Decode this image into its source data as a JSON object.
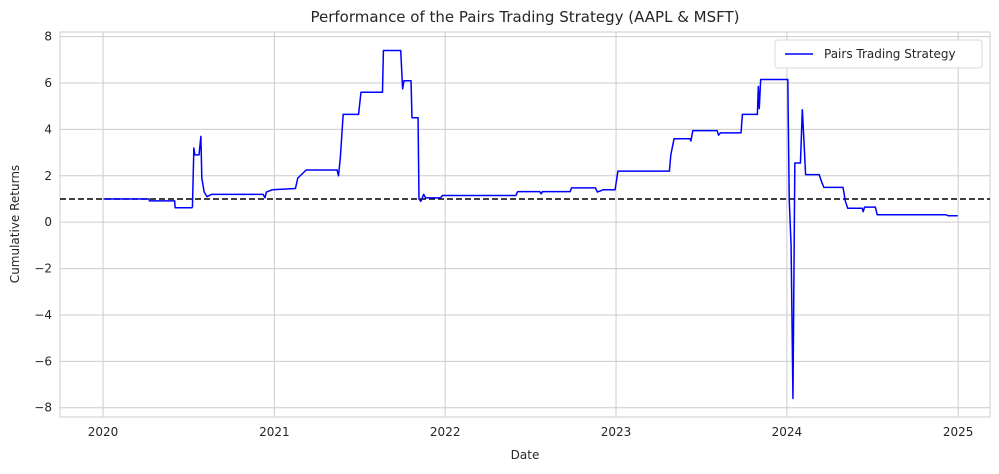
{
  "chart_data": {
    "type": "line",
    "title": "Performance of the Pairs Trading Strategy (AAPL & MSFT)",
    "xlabel": "Date",
    "ylabel": "Cumulative Returns",
    "xlim": [
      "2019-10-01",
      "2025-03-10"
    ],
    "ylim": [
      -8.4,
      8.2
    ],
    "x_ticks": [
      "2020",
      "2021",
      "2022",
      "2023",
      "2024",
      "2025"
    ],
    "y_ticks": [
      -8,
      -6,
      -4,
      -2,
      0,
      2,
      4,
      6,
      8
    ],
    "grid": true,
    "legend_position": "top-right",
    "reference_line": {
      "y": 1.0,
      "style": "dashed",
      "color": "#000000"
    },
    "series": [
      {
        "name": "Pairs Trading Strategy",
        "color": "#0000ff",
        "points": [
          [
            "2020-01-02",
            1.0
          ],
          [
            "2020-04-08",
            1.0
          ],
          [
            "2020-04-09",
            0.92
          ],
          [
            "2020-06-02",
            0.92
          ],
          [
            "2020-06-03",
            0.62
          ],
          [
            "2020-07-09",
            0.62
          ],
          [
            "2020-07-10",
            0.68
          ],
          [
            "2020-07-13",
            3.2
          ],
          [
            "2020-07-15",
            2.9
          ],
          [
            "2020-07-24",
            2.9
          ],
          [
            "2020-07-28",
            3.7
          ],
          [
            "2020-07-30",
            1.9
          ],
          [
            "2020-08-04",
            1.3
          ],
          [
            "2020-08-10",
            1.1
          ],
          [
            "2020-08-20",
            1.2
          ],
          [
            "2020-12-08",
            1.2
          ],
          [
            "2020-12-12",
            1.05
          ],
          [
            "2020-12-15",
            1.3
          ],
          [
            "2020-12-28",
            1.4
          ],
          [
            "2021-02-15",
            1.45
          ],
          [
            "2021-02-20",
            1.9
          ],
          [
            "2021-03-10",
            2.25
          ],
          [
            "2021-05-15",
            2.25
          ],
          [
            "2021-05-18",
            2.0
          ],
          [
            "2021-05-22",
            2.8
          ],
          [
            "2021-05-28",
            4.65
          ],
          [
            "2021-06-30",
            4.65
          ],
          [
            "2021-07-05",
            5.6
          ],
          [
            "2021-08-20",
            5.6
          ],
          [
            "2021-08-22",
            7.4
          ],
          [
            "2021-09-28",
            7.4
          ],
          [
            "2021-10-02",
            5.75
          ],
          [
            "2021-10-05",
            6.1
          ],
          [
            "2021-10-20",
            6.1
          ],
          [
            "2021-10-22",
            4.5
          ],
          [
            "2021-11-04",
            4.5
          ],
          [
            "2021-11-06",
            1.0
          ],
          [
            "2021-11-10",
            0.9
          ],
          [
            "2021-11-16",
            1.2
          ],
          [
            "2021-11-20",
            1.05
          ],
          [
            "2021-12-22",
            1.05
          ],
          [
            "2021-12-26",
            1.15
          ],
          [
            "2022-06-01",
            1.15
          ],
          [
            "2022-06-05",
            1.32
          ],
          [
            "2022-07-22",
            1.32
          ],
          [
            "2022-07-25",
            1.22
          ],
          [
            "2022-07-28",
            1.32
          ],
          [
            "2022-09-25",
            1.32
          ],
          [
            "2022-09-28",
            1.48
          ],
          [
            "2022-11-18",
            1.48
          ],
          [
            "2022-11-22",
            1.3
          ],
          [
            "2022-12-05",
            1.4
          ],
          [
            "2022-12-30",
            1.4
          ],
          [
            "2023-01-05",
            2.2
          ],
          [
            "2023-04-25",
            2.2
          ],
          [
            "2023-04-28",
            2.9
          ],
          [
            "2023-05-05",
            3.6
          ],
          [
            "2023-06-08",
            3.6
          ],
          [
            "2023-06-10",
            3.5
          ],
          [
            "2023-06-14",
            3.95
          ],
          [
            "2023-08-05",
            3.95
          ],
          [
            "2023-08-08",
            3.75
          ],
          [
            "2023-08-12",
            3.85
          ],
          [
            "2023-09-25",
            3.85
          ],
          [
            "2023-09-28",
            4.65
          ],
          [
            "2023-10-30",
            4.65
          ],
          [
            "2023-11-01",
            5.85
          ],
          [
            "2023-11-03",
            4.9
          ],
          [
            "2023-11-06",
            6.15
          ],
          [
            "2024-01-03",
            6.15
          ],
          [
            "2024-01-06",
            1.0
          ],
          [
            "2024-01-10",
            -1.0
          ],
          [
            "2024-01-14",
            -7.6
          ],
          [
            "2024-01-18",
            2.55
          ],
          [
            "2024-01-30",
            2.55
          ],
          [
            "2024-02-03",
            4.85
          ],
          [
            "2024-02-06",
            3.7
          ],
          [
            "2024-02-10",
            2.05
          ],
          [
            "2024-03-10",
            2.05
          ],
          [
            "2024-03-15",
            1.75
          ],
          [
            "2024-03-20",
            1.5
          ],
          [
            "2024-04-30",
            1.5
          ],
          [
            "2024-05-05",
            0.9
          ],
          [
            "2024-05-10",
            0.6
          ],
          [
            "2024-06-10",
            0.6
          ],
          [
            "2024-06-12",
            0.45
          ],
          [
            "2024-06-15",
            0.65
          ],
          [
            "2024-07-08",
            0.65
          ],
          [
            "2024-07-12",
            0.32
          ],
          [
            "2024-12-06",
            0.32
          ],
          [
            "2024-12-10",
            0.28
          ],
          [
            "2024-12-31",
            0.28
          ]
        ]
      }
    ]
  }
}
